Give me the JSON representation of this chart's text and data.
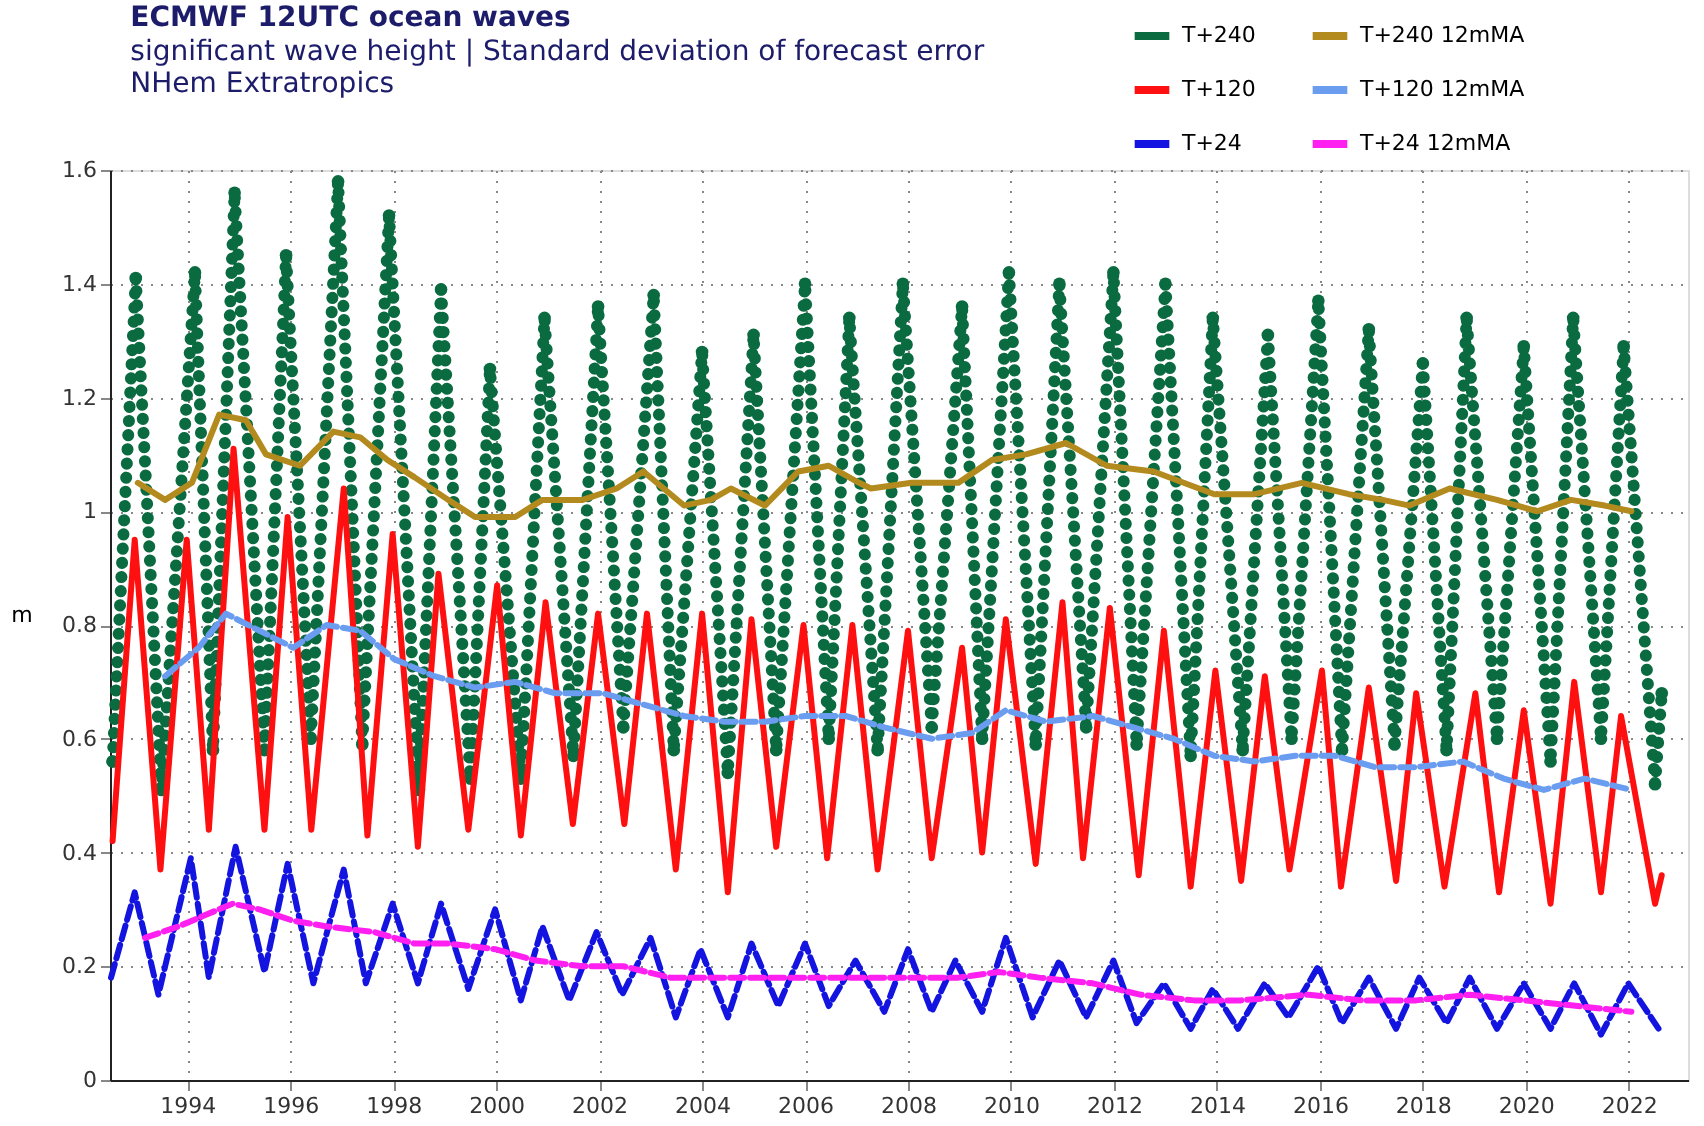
{
  "chart_data": {
    "type": "line",
    "title": "ECMWF 12UTC ocean waves",
    "subtitle": "significant wave height | Standard deviation of forecast error\nNHem Extratropics",
    "ylabel": "m",
    "xlim": [
      1992.5,
      2023.15
    ],
    "xticks": [
      1994,
      1996,
      1998,
      2000,
      2002,
      2004,
      2006,
      2008,
      2010,
      2012,
      2014,
      2016,
      2018,
      2020,
      2022
    ],
    "ylim": [
      0,
      1.6
    ],
    "yticks": [
      0,
      0.2,
      0.4,
      0.6,
      0.8,
      1,
      1.2,
      1.4,
      1.6
    ],
    "grid": true,
    "legend": "top right",
    "series": [
      {
        "name": "T+240",
        "color": "#0b6b40",
        "marker": "circle",
        "line_style": "dotted",
        "x": [
          1992.55,
          1993.0,
          1993.5,
          1994.15,
          1994.5,
          1994.92,
          1995.5,
          1995.92,
          1996.4,
          1996.93,
          1997.4,
          1997.92,
          1998.5,
          1998.93,
          1999.5,
          1999.88,
          2000.48,
          2000.94,
          2001.5,
          2001.98,
          2002.47,
          2003.06,
          2003.45,
          2004.0,
          2004.5,
          2005.0,
          2005.44,
          2006.0,
          2006.46,
          2006.86,
          2007.41,
          2007.9,
          2008.46,
          2009.05,
          2009.44,
          2009.96,
          2010.48,
          2010.94,
          2011.46,
          2011.99,
          2012.44,
          2013.0,
          2013.49,
          2013.92,
          2014.5,
          2014.99,
          2015.45,
          2015.97,
          2016.43,
          2016.95,
          2017.45,
          2018.0,
          2018.46,
          2018.85,
          2019.44,
          2019.96,
          2020.48,
          2020.92,
          2021.46,
          2021.9,
          2022.51,
          2022.64
        ],
        "values": [
          0.56,
          1.41,
          0.51,
          1.42,
          0.58,
          1.56,
          0.58,
          1.45,
          0.6,
          1.58,
          0.59,
          1.52,
          0.51,
          1.39,
          0.53,
          1.25,
          0.53,
          1.34,
          0.57,
          1.36,
          0.62,
          1.38,
          0.58,
          1.28,
          0.54,
          1.31,
          0.58,
          1.4,
          0.6,
          1.34,
          0.58,
          1.4,
          0.62,
          1.36,
          0.6,
          1.42,
          0.59,
          1.4,
          0.62,
          1.42,
          0.59,
          1.4,
          0.57,
          1.34,
          0.58,
          1.31,
          0.6,
          1.37,
          0.58,
          1.32,
          0.59,
          1.26,
          0.58,
          1.34,
          0.6,
          1.29,
          0.56,
          1.34,
          0.6,
          1.29,
          0.52,
          0.68
        ]
      },
      {
        "name": "T+240 12mMA",
        "color": "#b38a1e",
        "line_style": "solid",
        "x": [
          1993.04,
          1993.57,
          1994.09,
          1994.62,
          1995.14,
          1995.53,
          1996.19,
          1996.84,
          1997.36,
          1997.89,
          1998.41,
          1999.07,
          1999.59,
          2000.37,
          2000.9,
          2001.68,
          2002.34,
          2002.86,
          2003.65,
          2004.17,
          2004.56,
          2005.22,
          2005.87,
          2006.46,
          2007.05,
          2007.28,
          2008.07,
          2008.98,
          2009.63,
          2010.29,
          2011.07,
          2011.86,
          2012.77,
          2013.95,
          2014.73,
          2015.65,
          2016.56,
          2017.22,
          2017.74,
          2018.52,
          2019.44,
          2020.22,
          2020.88,
          2021.53,
          2022.05
        ],
        "values": [
          1.05,
          1.02,
          1.05,
          1.17,
          1.16,
          1.1,
          1.08,
          1.14,
          1.13,
          1.09,
          1.06,
          1.02,
          0.99,
          0.99,
          1.02,
          1.02,
          1.04,
          1.07,
          1.01,
          1.02,
          1.04,
          1.01,
          1.07,
          1.08,
          1.05,
          1.04,
          1.05,
          1.05,
          1.09,
          1.1,
          1.12,
          1.08,
          1.07,
          1.03,
          1.03,
          1.05,
          1.03,
          1.02,
          1.01,
          1.04,
          1.02,
          1.0,
          1.02,
          1.01,
          1.0
        ]
      },
      {
        "name": "T+120",
        "color": "#ff1010",
        "line_style": "solid",
        "x": [
          1992.55,
          1992.98,
          1993.48,
          1993.99,
          1994.42,
          1994.9,
          1995.5,
          1995.95,
          1996.41,
          1997.04,
          1997.5,
          1997.99,
          1998.48,
          1998.88,
          1999.46,
          2000.02,
          2000.48,
          2000.96,
          2001.49,
          2001.98,
          2002.49,
          2002.93,
          2003.49,
          2004.0,
          2004.5,
          2004.96,
          2005.44,
          2005.97,
          2006.43,
          2006.92,
          2007.41,
          2008.0,
          2008.46,
          2009.05,
          2009.44,
          2009.9,
          2010.48,
          2011.0,
          2011.4,
          2011.92,
          2012.48,
          2012.97,
          2013.49,
          2013.97,
          2014.47,
          2014.93,
          2015.41,
          2016.04,
          2016.41,
          2016.95,
          2017.48,
          2017.87,
          2018.42,
          2019.02,
          2019.48,
          2019.96,
          2020.48,
          2020.94,
          2021.46,
          2021.85,
          2022.51,
          2022.64
        ],
        "values": [
          0.42,
          0.95,
          0.37,
          0.95,
          0.44,
          1.11,
          0.44,
          0.99,
          0.44,
          1.04,
          0.43,
          0.96,
          0.41,
          0.89,
          0.44,
          0.87,
          0.43,
          0.84,
          0.45,
          0.82,
          0.45,
          0.82,
          0.37,
          0.82,
          0.33,
          0.81,
          0.41,
          0.8,
          0.39,
          0.8,
          0.37,
          0.79,
          0.39,
          0.76,
          0.4,
          0.81,
          0.38,
          0.84,
          0.39,
          0.83,
          0.36,
          0.79,
          0.34,
          0.72,
          0.35,
          0.71,
          0.37,
          0.72,
          0.34,
          0.69,
          0.35,
          0.68,
          0.34,
          0.68,
          0.33,
          0.65,
          0.31,
          0.7,
          0.33,
          0.64,
          0.31,
          0.36
        ]
      },
      {
        "name": "T+120 12mMA",
        "color": "#6a9cf0",
        "line_style": "dashed",
        "x": [
          1993.57,
          1994.22,
          1994.75,
          1995.4,
          1996.06,
          1996.71,
          1997.36,
          1998.02,
          1998.8,
          1999.59,
          2000.37,
          2001.15,
          2002.08,
          2002.86,
          2003.65,
          2004.43,
          2005.22,
          2006.0,
          2006.79,
          2007.54,
          2008.46,
          2009.24,
          2009.9,
          2010.68,
          2011.59,
          2012.38,
          2013.16,
          2013.95,
          2014.73,
          2015.52,
          2016.3,
          2017.08,
          2017.87,
          2018.78,
          2019.57,
          2020.35,
          2021.14,
          2022.05
        ],
        "values": [
          0.71,
          0.76,
          0.82,
          0.79,
          0.76,
          0.8,
          0.79,
          0.74,
          0.71,
          0.69,
          0.7,
          0.68,
          0.68,
          0.66,
          0.64,
          0.63,
          0.63,
          0.64,
          0.64,
          0.62,
          0.6,
          0.61,
          0.65,
          0.63,
          0.64,
          0.62,
          0.6,
          0.57,
          0.56,
          0.57,
          0.57,
          0.55,
          0.55,
          0.56,
          0.53,
          0.51,
          0.53,
          0.51
        ]
      },
      {
        "name": "T+24",
        "color": "#1414e0",
        "line_style": "dashed",
        "x": [
          1992.52,
          1992.98,
          1993.44,
          1994.07,
          1994.42,
          1994.94,
          1995.5,
          1995.95,
          1996.45,
          1997.04,
          1997.47,
          1997.99,
          1998.48,
          1998.93,
          1999.46,
          1999.98,
          2000.48,
          2000.9,
          2001.42,
          2001.95,
          2002.45,
          2003.0,
          2003.49,
          2003.97,
          2004.5,
          2004.96,
          2005.48,
          2006.0,
          2006.46,
          2006.98,
          2007.54,
          2008.0,
          2008.46,
          2008.92,
          2009.44,
          2009.9,
          2010.42,
          2010.94,
          2011.46,
          2011.99,
          2012.44,
          2012.97,
          2013.49,
          2013.92,
          2014.41,
          2014.93,
          2015.39,
          2015.97,
          2016.43,
          2016.95,
          2017.48,
          2017.93,
          2018.46,
          2018.91,
          2019.44,
          2019.96,
          2020.48,
          2020.94,
          2021.46,
          2021.99,
          2022.58
        ],
        "values": [
          0.18,
          0.33,
          0.15,
          0.39,
          0.18,
          0.41,
          0.19,
          0.38,
          0.17,
          0.37,
          0.17,
          0.31,
          0.17,
          0.31,
          0.16,
          0.3,
          0.14,
          0.27,
          0.14,
          0.26,
          0.15,
          0.25,
          0.11,
          0.23,
          0.11,
          0.24,
          0.13,
          0.24,
          0.13,
          0.21,
          0.12,
          0.23,
          0.12,
          0.21,
          0.12,
          0.25,
          0.11,
          0.21,
          0.11,
          0.21,
          0.1,
          0.17,
          0.09,
          0.16,
          0.09,
          0.17,
          0.11,
          0.2,
          0.1,
          0.18,
          0.09,
          0.18,
          0.1,
          0.18,
          0.09,
          0.17,
          0.09,
          0.17,
          0.08,
          0.17,
          0.09
        ]
      },
      {
        "name": "T+24 12mMA",
        "color": "#ff1ff0",
        "line_style": "dashed",
        "x": [
          1993.18,
          1993.83,
          1994.35,
          1994.88,
          1995.4,
          1996.06,
          1996.71,
          1997.63,
          1998.41,
          1999.07,
          1999.98,
          2000.77,
          2001.68,
          2002.47,
          2003.38,
          2004.3,
          2005.22,
          2006.13,
          2006.92,
          2007.15,
          2008.07,
          2008.98,
          2009.76,
          2010.55,
          2011.59,
          2012.51,
          2013.56,
          2014.47,
          2015.78,
          2016.82,
          2017.87,
          2018.91,
          2019.96,
          2021.01,
          2022.05
        ],
        "values": [
          0.25,
          0.27,
          0.29,
          0.31,
          0.3,
          0.28,
          0.27,
          0.26,
          0.24,
          0.24,
          0.23,
          0.21,
          0.2,
          0.2,
          0.18,
          0.18,
          0.18,
          0.18,
          0.18,
          0.18,
          0.18,
          0.18,
          0.19,
          0.18,
          0.17,
          0.15,
          0.14,
          0.14,
          0.15,
          0.14,
          0.14,
          0.15,
          0.14,
          0.13,
          0.12
        ]
      }
    ]
  }
}
